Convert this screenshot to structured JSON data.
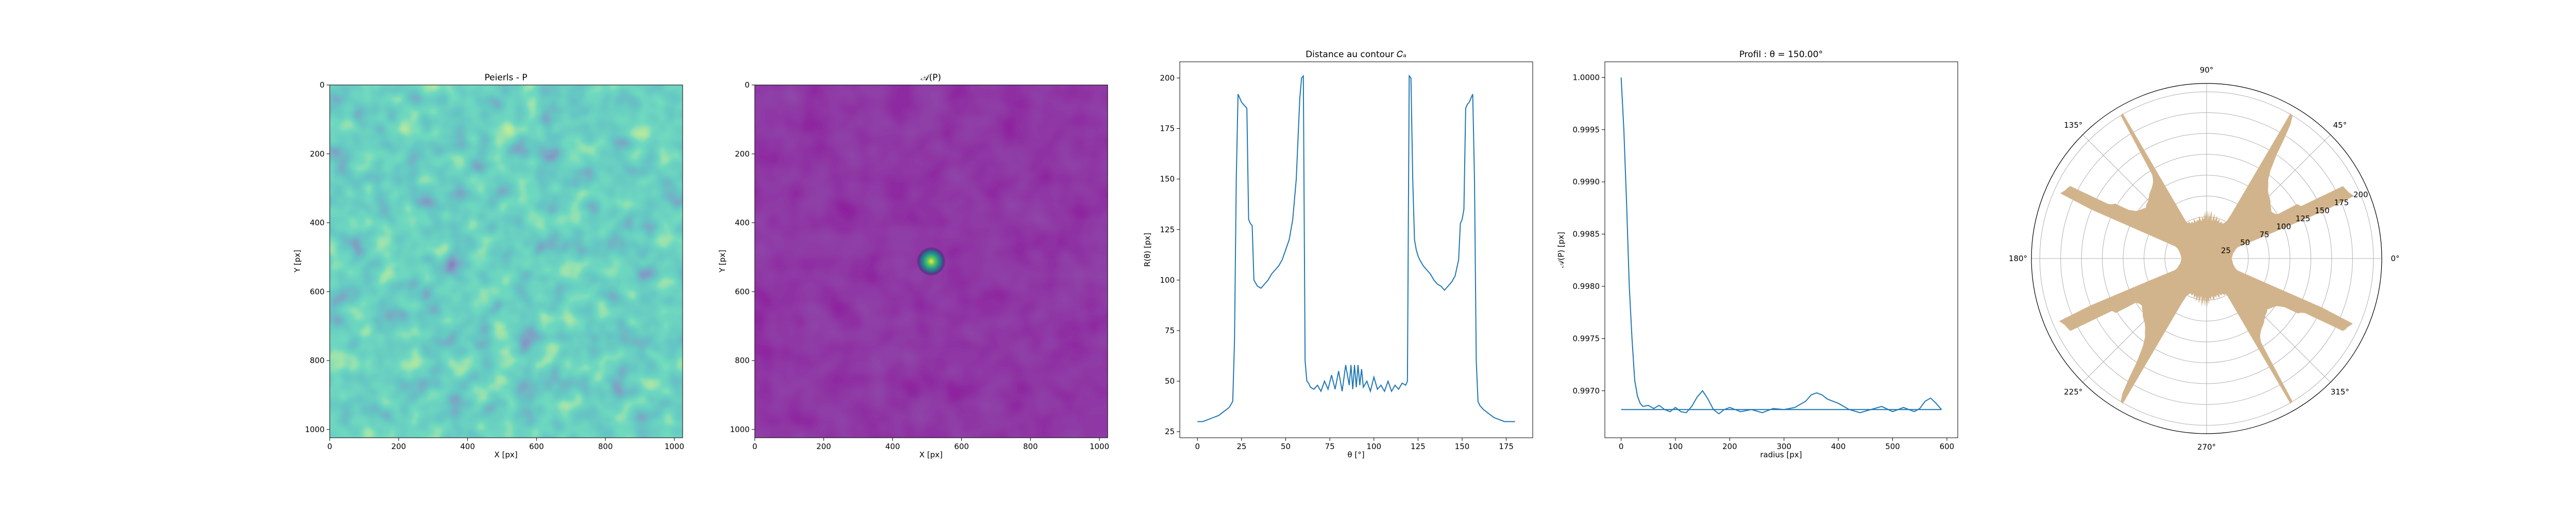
{
  "chart_data": [
    {
      "type": "heatmap",
      "title": "Peierls - P",
      "xlabel": "X [px]",
      "ylabel": "Y [px]",
      "xlim": [
        0,
        1024
      ],
      "ylim": [
        1024,
        0
      ],
      "x_ticks": [
        "0",
        "200",
        "400",
        "600",
        "800",
        "1000"
      ],
      "y_ticks": [
        "0",
        "200",
        "400",
        "600",
        "800",
        "1000"
      ],
      "colormap": "viridis",
      "pattern": "random Gaussian-correlated noise",
      "grid": false
    },
    {
      "type": "heatmap",
      "title": "𝒜(P)",
      "xlabel": "X [px]",
      "ylabel": "Y [px]",
      "xlim": [
        0,
        1024
      ],
      "ylim": [
        1024,
        0
      ],
      "x_ticks": [
        "0",
        "200",
        "400",
        "600",
        "800",
        "1000"
      ],
      "y_ticks": [
        "0",
        "200",
        "400",
        "600",
        "800",
        "1000"
      ],
      "colormap": "viridis",
      "peak": {
        "x": 512,
        "y": 512
      },
      "grid": false
    },
    {
      "type": "line",
      "title": "Distance au contour 𝐶ₐ",
      "xlabel": "θ [°]",
      "ylabel": "R(θ) [px]",
      "xlim": [
        -10,
        190
      ],
      "ylim": [
        22,
        208
      ],
      "x_ticks": [
        0,
        25,
        50,
        75,
        100,
        125,
        150,
        175
      ],
      "y_ticks": [
        25,
        50,
        75,
        100,
        125,
        150,
        175,
        200
      ],
      "color": "#1f77b4",
      "x": [
        0,
        3,
        6,
        9,
        12,
        15,
        18,
        20,
        21,
        22,
        23,
        24,
        25,
        26,
        27,
        28,
        29,
        30,
        31,
        32,
        34,
        36,
        38,
        40,
        42,
        44,
        46,
        48,
        50,
        52,
        54,
        56,
        57,
        58,
        59,
        60,
        61,
        62,
        63,
        64,
        66,
        68,
        70,
        72,
        74,
        76,
        78,
        80,
        82,
        84,
        86,
        87,
        88,
        89,
        90,
        91,
        92,
        93,
        94,
        96,
        98,
        100,
        102,
        104,
        106,
        108,
        110,
        112,
        114,
        116,
        118,
        119,
        120,
        121,
        122,
        123,
        124,
        125,
        126,
        128,
        130,
        132,
        134,
        136,
        138,
        140,
        142,
        144,
        146,
        148,
        149,
        150,
        151,
        152,
        153,
        154,
        155,
        156,
        157,
        158,
        159,
        160,
        162,
        165,
        168,
        171,
        174,
        177,
        180
      ],
      "y": [
        30,
        30,
        31,
        32,
        33,
        35,
        37,
        40,
        70,
        150,
        192,
        190,
        188,
        187,
        186,
        185,
        130,
        128,
        127,
        100,
        97,
        96,
        98,
        100,
        103,
        105,
        107,
        110,
        115,
        120,
        130,
        150,
        170,
        190,
        200,
        201,
        60,
        50,
        49,
        47,
        46,
        48,
        45,
        50,
        46,
        53,
        46,
        55,
        45,
        58,
        48,
        58,
        46,
        58,
        47,
        58,
        48,
        56,
        47,
        50,
        45,
        52,
        46,
        48,
        45,
        50,
        45,
        48,
        46,
        49,
        48,
        50,
        201,
        200,
        150,
        120,
        115,
        112,
        110,
        107,
        105,
        103,
        100,
        98,
        97,
        95,
        97,
        99,
        102,
        110,
        128,
        130,
        135,
        185,
        187,
        188,
        190,
        192,
        150,
        60,
        40,
        38,
        36,
        34,
        32,
        31,
        30,
        30,
        30
      ]
    },
    {
      "type": "line",
      "title": "Profil : θ = 150.00°",
      "xlabel": "radius [px]",
      "ylabel": "𝒜(P) [px]",
      "xlim": [
        -30,
        620
      ],
      "ylim": [
        0.99655,
        1.00015
      ],
      "x_ticks": [
        0,
        100,
        200,
        300,
        400,
        500,
        600
      ],
      "y_ticks": [
        "0.9970",
        "0.9975",
        "0.9980",
        "0.9985",
        "0.9990",
        "0.9995",
        "1.0000"
      ],
      "color": "#1f77b4",
      "baseline": 0.99682,
      "x": [
        0,
        5,
        10,
        15,
        20,
        25,
        30,
        35,
        40,
        50,
        60,
        70,
        80,
        90,
        100,
        110,
        120,
        130,
        140,
        150,
        160,
        170,
        180,
        190,
        200,
        220,
        240,
        260,
        280,
        300,
        320,
        340,
        350,
        360,
        370,
        380,
        390,
        400,
        420,
        440,
        460,
        480,
        500,
        520,
        540,
        550,
        560,
        570,
        580,
        590
      ],
      "y": [
        1.0,
        0.9995,
        0.9988,
        0.998,
        0.9975,
        0.9971,
        0.99695,
        0.99688,
        0.99685,
        0.99686,
        0.99683,
        0.99686,
        0.99682,
        0.9968,
        0.99684,
        0.9968,
        0.99679,
        0.99685,
        0.99694,
        0.997,
        0.99692,
        0.99682,
        0.99678,
        0.99682,
        0.99684,
        0.9968,
        0.99682,
        0.99679,
        0.99683,
        0.99682,
        0.99684,
        0.9969,
        0.99696,
        0.99698,
        0.99696,
        0.99692,
        0.9969,
        0.99688,
        0.99682,
        0.99679,
        0.99682,
        0.99685,
        0.9968,
        0.99684,
        0.9968,
        0.99683,
        0.9969,
        0.99693,
        0.99688,
        0.99682
      ]
    },
    {
      "type": "polar-area",
      "r_ticks": [
        "25",
        "50",
        "75",
        "100",
        "125",
        "150",
        "175",
        "200"
      ],
      "rlim": [
        0,
        210
      ],
      "angle_ticks": [
        "0°",
        "45°",
        "90°",
        "135°",
        "180°",
        "225°",
        "270°",
        "315°"
      ],
      "fill_color": "#d2b48c",
      "theta_deg": [
        0,
        5,
        10,
        15,
        18,
        20,
        21,
        22,
        23,
        24,
        25,
        26,
        27,
        28,
        29,
        30,
        31,
        32,
        34,
        36,
        38,
        40,
        42,
        44,
        46,
        48,
        50,
        52,
        54,
        56,
        57,
        58,
        59,
        60,
        61,
        62,
        63,
        64,
        66,
        68,
        70,
        72,
        74,
        76,
        78,
        80,
        82,
        84,
        86,
        87,
        88,
        89,
        90,
        91,
        92,
        93,
        94,
        96,
        98,
        100,
        102,
        104,
        106,
        108,
        110,
        112,
        114,
        116,
        118,
        119,
        120,
        121,
        122,
        123,
        124,
        125,
        126,
        128,
        130,
        132,
        134,
        136,
        138,
        140,
        142,
        144,
        146,
        148,
        149,
        150,
        151,
        152,
        153,
        154,
        155,
        156,
        157,
        158,
        159,
        160,
        162,
        165,
        170,
        175,
        180
      ],
      "r": [
        30,
        31,
        32,
        35,
        37,
        40,
        70,
        150,
        192,
        190,
        188,
        187,
        186,
        185,
        130,
        128,
        127,
        100,
        97,
        96,
        98,
        100,
        103,
        105,
        107,
        110,
        115,
        120,
        130,
        150,
        170,
        190,
        200,
        201,
        60,
        50,
        49,
        47,
        46,
        48,
        45,
        50,
        46,
        53,
        46,
        55,
        45,
        58,
        48,
        58,
        46,
        58,
        47,
        58,
        48,
        56,
        47,
        50,
        45,
        52,
        46,
        48,
        45,
        50,
        45,
        48,
        46,
        49,
        48,
        50,
        201,
        200,
        150,
        120,
        115,
        112,
        110,
        107,
        105,
        103,
        100,
        98,
        97,
        95,
        97,
        99,
        102,
        110,
        128,
        130,
        135,
        185,
        187,
        188,
        190,
        192,
        150,
        60,
        40,
        38,
        36,
        34,
        32,
        31,
        30
      ]
    }
  ]
}
